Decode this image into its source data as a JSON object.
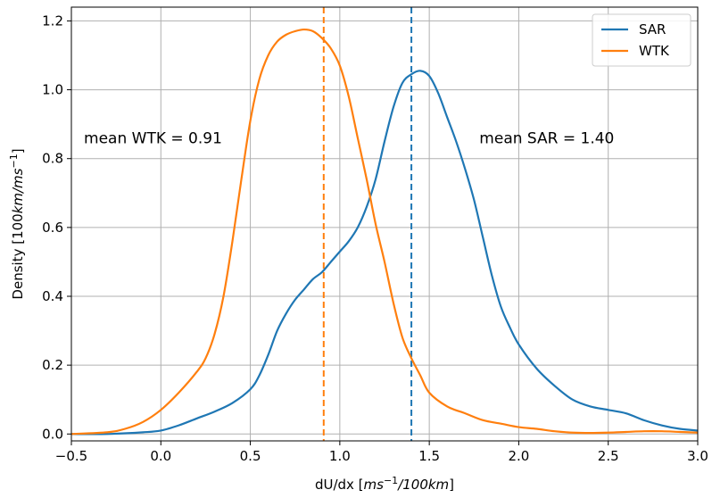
{
  "chart_data": {
    "type": "line",
    "title": "",
    "xlabel": "dU/dx [ms⁻¹/100km]",
    "ylabel": "Density [100km/ms⁻¹]",
    "xlim": [
      -0.5,
      3.0
    ],
    "ylim": [
      -0.02,
      1.24
    ],
    "x_ticks": [
      "−0.5",
      "0.0",
      "0.5",
      "1.0",
      "1.5",
      "2.0",
      "2.5",
      "3.0"
    ],
    "y_ticks": [
      "0.0",
      "0.2",
      "0.4",
      "0.6",
      "0.8",
      "1.0",
      "1.2"
    ],
    "grid": true,
    "legend": {
      "placement": "top-right",
      "entries": [
        "SAR",
        "WTK"
      ]
    },
    "series": [
      {
        "name": "SAR",
        "color": "#1f77b4",
        "x": [
          -0.5,
          -0.3,
          -0.1,
          0.0,
          0.1,
          0.2,
          0.3,
          0.4,
          0.5,
          0.55,
          0.6,
          0.65,
          0.7,
          0.75,
          0.8,
          0.85,
          0.9,
          0.95,
          1.0,
          1.05,
          1.1,
          1.15,
          1.2,
          1.25,
          1.3,
          1.35,
          1.4,
          1.45,
          1.5,
          1.55,
          1.6,
          1.65,
          1.7,
          1.75,
          1.8,
          1.85,
          1.9,
          1.95,
          2.0,
          2.1,
          2.2,
          2.3,
          2.4,
          2.5,
          2.6,
          2.7,
          2.8,
          2.9,
          3.0
        ],
        "y": [
          0.0,
          0.0,
          0.005,
          0.01,
          0.025,
          0.045,
          0.065,
          0.09,
          0.13,
          0.17,
          0.23,
          0.3,
          0.35,
          0.39,
          0.42,
          0.45,
          0.47,
          0.5,
          0.53,
          0.56,
          0.6,
          0.66,
          0.74,
          0.85,
          0.95,
          1.02,
          1.045,
          1.055,
          1.04,
          0.99,
          0.92,
          0.85,
          0.77,
          0.68,
          0.57,
          0.46,
          0.37,
          0.31,
          0.26,
          0.19,
          0.14,
          0.1,
          0.08,
          0.07,
          0.06,
          0.04,
          0.025,
          0.015,
          0.01
        ]
      },
      {
        "name": "WTK",
        "color": "#ff7f0e",
        "x": [
          -0.5,
          -0.3,
          -0.2,
          -0.1,
          0.0,
          0.1,
          0.2,
          0.25,
          0.3,
          0.35,
          0.4,
          0.45,
          0.5,
          0.55,
          0.6,
          0.65,
          0.7,
          0.75,
          0.8,
          0.85,
          0.9,
          0.95,
          1.0,
          1.05,
          1.1,
          1.15,
          1.2,
          1.25,
          1.3,
          1.35,
          1.4,
          1.45,
          1.5,
          1.6,
          1.7,
          1.8,
          1.9,
          2.0,
          2.1,
          2.2,
          2.3,
          2.4,
          2.5,
          2.6,
          2.7,
          2.8,
          2.9,
          3.0
        ],
        "y": [
          0.0,
          0.005,
          0.015,
          0.035,
          0.07,
          0.12,
          0.18,
          0.22,
          0.29,
          0.4,
          0.56,
          0.74,
          0.91,
          1.03,
          1.1,
          1.14,
          1.16,
          1.17,
          1.175,
          1.17,
          1.15,
          1.12,
          1.07,
          0.98,
          0.86,
          0.74,
          0.61,
          0.5,
          0.38,
          0.28,
          0.22,
          0.17,
          0.12,
          0.08,
          0.06,
          0.04,
          0.03,
          0.02,
          0.015,
          0.008,
          0.004,
          0.003,
          0.004,
          0.006,
          0.008,
          0.008,
          0.006,
          0.004
        ]
      }
    ],
    "vlines": [
      {
        "series": "WTK",
        "x": 0.91,
        "color": "#ff7f0e",
        "style": "dashed"
      },
      {
        "series": "SAR",
        "x": 1.4,
        "color": "#1f77b4",
        "style": "dashed"
      }
    ],
    "annotations": [
      {
        "text": "mean WTK = 0.91",
        "x": -0.43,
        "y": 0.845
      },
      {
        "text": "mean SAR = 1.40",
        "x": 1.78,
        "y": 0.845
      }
    ]
  }
}
